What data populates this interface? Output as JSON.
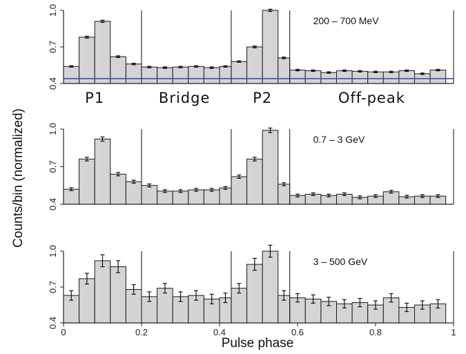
{
  "chart_data": {
    "type": "bar",
    "xlabel": "Pulse phase",
    "ylabel": "Counts/bin (normalized)",
    "xlim": [
      0,
      1
    ],
    "x_ticks": [
      "0",
      "0.2",
      "0.4",
      "0.6",
      "0.8",
      "1"
    ],
    "bin_width": 0.04,
    "phase_boundaries": [
      0.2,
      0.43,
      0.58,
      1.0
    ],
    "region_labels": [
      {
        "text": "P1",
        "x": 0.08
      },
      {
        "text": "Bridge",
        "x": 0.31
      },
      {
        "text": "P2",
        "x": 0.51
      },
      {
        "text": "Off-peak",
        "x": 0.79
      }
    ],
    "panels": [
      {
        "energy_label": "200 – 700 MeV",
        "ylim": [
          0.4,
          1.0
        ],
        "y_ticks": [
          "0.4",
          "0.7",
          "1.0"
        ],
        "show_x_ticks": false,
        "baseline": 0.44,
        "baseline_color": "#3a4fc7",
        "bins": [
          {
            "x0": 0.0,
            "x1": 0.04,
            "y": 0.54,
            "err": 0.006
          },
          {
            "x0": 0.04,
            "x1": 0.08,
            "y": 0.78,
            "err": 0.008
          },
          {
            "x0": 0.08,
            "x1": 0.12,
            "y": 0.91,
            "err": 0.009
          },
          {
            "x0": 0.12,
            "x1": 0.16,
            "y": 0.62,
            "err": 0.007
          },
          {
            "x0": 0.16,
            "x1": 0.2,
            "y": 0.56,
            "err": 0.006
          },
          {
            "x0": 0.2,
            "x1": 0.24,
            "y": 0.535,
            "err": 0.006
          },
          {
            "x0": 0.24,
            "x1": 0.28,
            "y": 0.53,
            "err": 0.006
          },
          {
            "x0": 0.28,
            "x1": 0.32,
            "y": 0.535,
            "err": 0.006
          },
          {
            "x0": 0.32,
            "x1": 0.36,
            "y": 0.54,
            "err": 0.006
          },
          {
            "x0": 0.36,
            "x1": 0.4,
            "y": 0.53,
            "err": 0.006
          },
          {
            "x0": 0.4,
            "x1": 0.43,
            "y": 0.54,
            "err": 0.006
          },
          {
            "x0": 0.43,
            "x1": 0.47,
            "y": 0.58,
            "err": 0.006
          },
          {
            "x0": 0.47,
            "x1": 0.51,
            "y": 0.7,
            "err": 0.008
          },
          {
            "x0": 0.51,
            "x1": 0.55,
            "y": 1.0,
            "err": 0.009
          },
          {
            "x0": 0.55,
            "x1": 0.58,
            "y": 0.61,
            "err": 0.007
          },
          {
            "x0": 0.58,
            "x1": 0.62,
            "y": 0.51,
            "err": 0.006
          },
          {
            "x0": 0.62,
            "x1": 0.66,
            "y": 0.505,
            "err": 0.006
          },
          {
            "x0": 0.66,
            "x1": 0.7,
            "y": 0.49,
            "err": 0.006
          },
          {
            "x0": 0.7,
            "x1": 0.74,
            "y": 0.505,
            "err": 0.006
          },
          {
            "x0": 0.74,
            "x1": 0.78,
            "y": 0.5,
            "err": 0.006
          },
          {
            "x0": 0.78,
            "x1": 0.82,
            "y": 0.495,
            "err": 0.006
          },
          {
            "x0": 0.82,
            "x1": 0.86,
            "y": 0.495,
            "err": 0.006
          },
          {
            "x0": 0.86,
            "x1": 0.9,
            "y": 0.505,
            "err": 0.006
          },
          {
            "x0": 0.9,
            "x1": 0.94,
            "y": 0.48,
            "err": 0.006
          },
          {
            "x0": 0.94,
            "x1": 0.98,
            "y": 0.51,
            "err": 0.006
          }
        ]
      },
      {
        "energy_label": "0.7 – 3 GeV",
        "ylim": [
          0.4,
          1.0
        ],
        "y_ticks": [
          "0.4",
          "0.7",
          "1.0"
        ],
        "show_x_ticks": false,
        "bins": [
          {
            "x0": 0.0,
            "x1": 0.04,
            "y": 0.52,
            "err": 0.012
          },
          {
            "x0": 0.04,
            "x1": 0.08,
            "y": 0.76,
            "err": 0.015
          },
          {
            "x0": 0.08,
            "x1": 0.12,
            "y": 0.92,
            "err": 0.017
          },
          {
            "x0": 0.12,
            "x1": 0.16,
            "y": 0.64,
            "err": 0.013
          },
          {
            "x0": 0.16,
            "x1": 0.2,
            "y": 0.58,
            "err": 0.012
          },
          {
            "x0": 0.2,
            "x1": 0.24,
            "y": 0.55,
            "err": 0.012
          },
          {
            "x0": 0.24,
            "x1": 0.28,
            "y": 0.505,
            "err": 0.011
          },
          {
            "x0": 0.28,
            "x1": 0.32,
            "y": 0.505,
            "err": 0.011
          },
          {
            "x0": 0.32,
            "x1": 0.36,
            "y": 0.515,
            "err": 0.011
          },
          {
            "x0": 0.36,
            "x1": 0.4,
            "y": 0.515,
            "err": 0.011
          },
          {
            "x0": 0.4,
            "x1": 0.43,
            "y": 0.53,
            "err": 0.011
          },
          {
            "x0": 0.43,
            "x1": 0.47,
            "y": 0.62,
            "err": 0.013
          },
          {
            "x0": 0.47,
            "x1": 0.51,
            "y": 0.76,
            "err": 0.015
          },
          {
            "x0": 0.51,
            "x1": 0.55,
            "y": 0.99,
            "err": 0.018
          },
          {
            "x0": 0.55,
            "x1": 0.58,
            "y": 0.56,
            "err": 0.012
          },
          {
            "x0": 0.58,
            "x1": 0.62,
            "y": 0.47,
            "err": 0.011
          },
          {
            "x0": 0.62,
            "x1": 0.66,
            "y": 0.48,
            "err": 0.011
          },
          {
            "x0": 0.66,
            "x1": 0.7,
            "y": 0.47,
            "err": 0.011
          },
          {
            "x0": 0.7,
            "x1": 0.74,
            "y": 0.48,
            "err": 0.011
          },
          {
            "x0": 0.74,
            "x1": 0.78,
            "y": 0.455,
            "err": 0.011
          },
          {
            "x0": 0.78,
            "x1": 0.82,
            "y": 0.465,
            "err": 0.011
          },
          {
            "x0": 0.82,
            "x1": 0.86,
            "y": 0.5,
            "err": 0.011
          },
          {
            "x0": 0.86,
            "x1": 0.9,
            "y": 0.46,
            "err": 0.011
          },
          {
            "x0": 0.9,
            "x1": 0.94,
            "y": 0.465,
            "err": 0.011
          },
          {
            "x0": 0.94,
            "x1": 0.98,
            "y": 0.465,
            "err": 0.011
          }
        ]
      },
      {
        "energy_label": "3 – 500 GeV",
        "ylim": [
          0.4,
          1.0
        ],
        "y_ticks": [
          "0.4",
          "0.7",
          "1.0"
        ],
        "show_x_ticks": true,
        "bins": [
          {
            "x0": 0.0,
            "x1": 0.04,
            "y": 0.63,
            "err": 0.04
          },
          {
            "x0": 0.04,
            "x1": 0.08,
            "y": 0.77,
            "err": 0.045
          },
          {
            "x0": 0.08,
            "x1": 0.12,
            "y": 0.92,
            "err": 0.05
          },
          {
            "x0": 0.12,
            "x1": 0.16,
            "y": 0.87,
            "err": 0.05
          },
          {
            "x0": 0.16,
            "x1": 0.2,
            "y": 0.68,
            "err": 0.04
          },
          {
            "x0": 0.2,
            "x1": 0.24,
            "y": 0.62,
            "err": 0.04
          },
          {
            "x0": 0.24,
            "x1": 0.28,
            "y": 0.69,
            "err": 0.04
          },
          {
            "x0": 0.28,
            "x1": 0.32,
            "y": 0.62,
            "err": 0.04
          },
          {
            "x0": 0.32,
            "x1": 0.36,
            "y": 0.63,
            "err": 0.04
          },
          {
            "x0": 0.36,
            "x1": 0.4,
            "y": 0.6,
            "err": 0.04
          },
          {
            "x0": 0.4,
            "x1": 0.43,
            "y": 0.61,
            "err": 0.04
          },
          {
            "x0": 0.43,
            "x1": 0.47,
            "y": 0.69,
            "err": 0.04
          },
          {
            "x0": 0.47,
            "x1": 0.51,
            "y": 0.89,
            "err": 0.05
          },
          {
            "x0": 0.51,
            "x1": 0.55,
            "y": 1.0,
            "err": 0.05
          },
          {
            "x0": 0.55,
            "x1": 0.58,
            "y": 0.63,
            "err": 0.04
          },
          {
            "x0": 0.58,
            "x1": 0.62,
            "y": 0.61,
            "err": 0.035
          },
          {
            "x0": 0.62,
            "x1": 0.66,
            "y": 0.6,
            "err": 0.035
          },
          {
            "x0": 0.66,
            "x1": 0.7,
            "y": 0.58,
            "err": 0.035
          },
          {
            "x0": 0.7,
            "x1": 0.74,
            "y": 0.56,
            "err": 0.035
          },
          {
            "x0": 0.74,
            "x1": 0.78,
            "y": 0.57,
            "err": 0.035
          },
          {
            "x0": 0.78,
            "x1": 0.82,
            "y": 0.55,
            "err": 0.035
          },
          {
            "x0": 0.82,
            "x1": 0.86,
            "y": 0.61,
            "err": 0.035
          },
          {
            "x0": 0.86,
            "x1": 0.9,
            "y": 0.53,
            "err": 0.035
          },
          {
            "x0": 0.9,
            "x1": 0.94,
            "y": 0.55,
            "err": 0.035
          },
          {
            "x0": 0.94,
            "x1": 0.98,
            "y": 0.56,
            "err": 0.035
          }
        ]
      }
    ]
  }
}
